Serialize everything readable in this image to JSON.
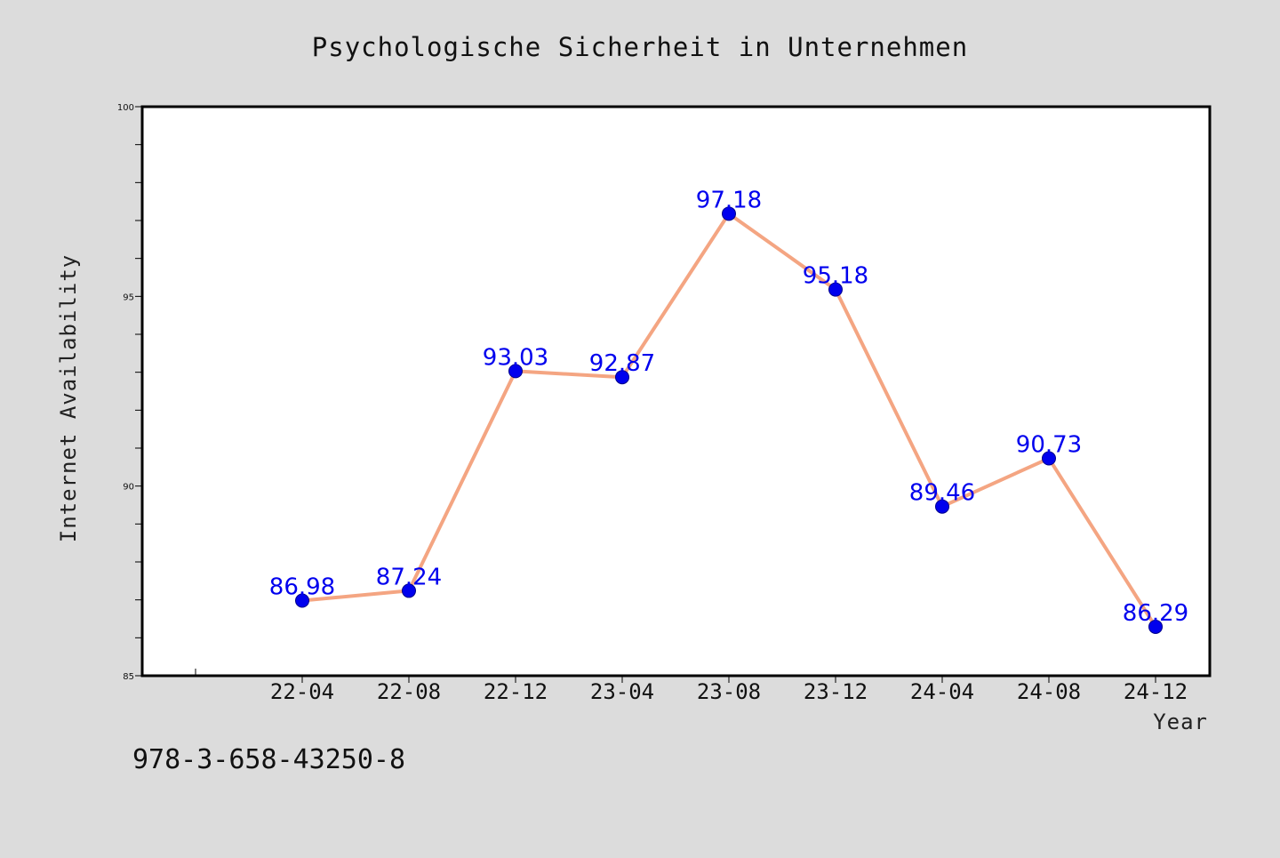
{
  "chart_data": {
    "type": "line",
    "title": "Psychologische Sicherheit in Unternehmen",
    "xlabel": "Year",
    "ylabel": "Internet Availability",
    "ylim": [
      85,
      100
    ],
    "yticks": [
      "85",
      "90",
      "95",
      "100"
    ],
    "categories": [
      "22-04",
      "22-08",
      "22-12",
      "23-04",
      "23-08",
      "23-12",
      "24-04",
      "24-08",
      "24-12"
    ],
    "series": [
      {
        "values": [
          86.98,
          87.24,
          93.03,
          92.87,
          97.18,
          95.18,
          89.46,
          90.73,
          86.29
        ],
        "labels": [
          "86.98",
          "87.24",
          "93.03",
          "92.87",
          "97.18",
          "95.18",
          "89.46",
          "90.73",
          "86.29"
        ],
        "line_color": "#f4a582",
        "marker_color": "#0000ee",
        "label_color": "#0000ee"
      }
    ],
    "grid": false,
    "legend": "none"
  },
  "footer": {
    "isbn": "978-3-658-43250-8"
  },
  "colors": {
    "background": "#dcdcdc",
    "plot_background": "#ffffff"
  }
}
